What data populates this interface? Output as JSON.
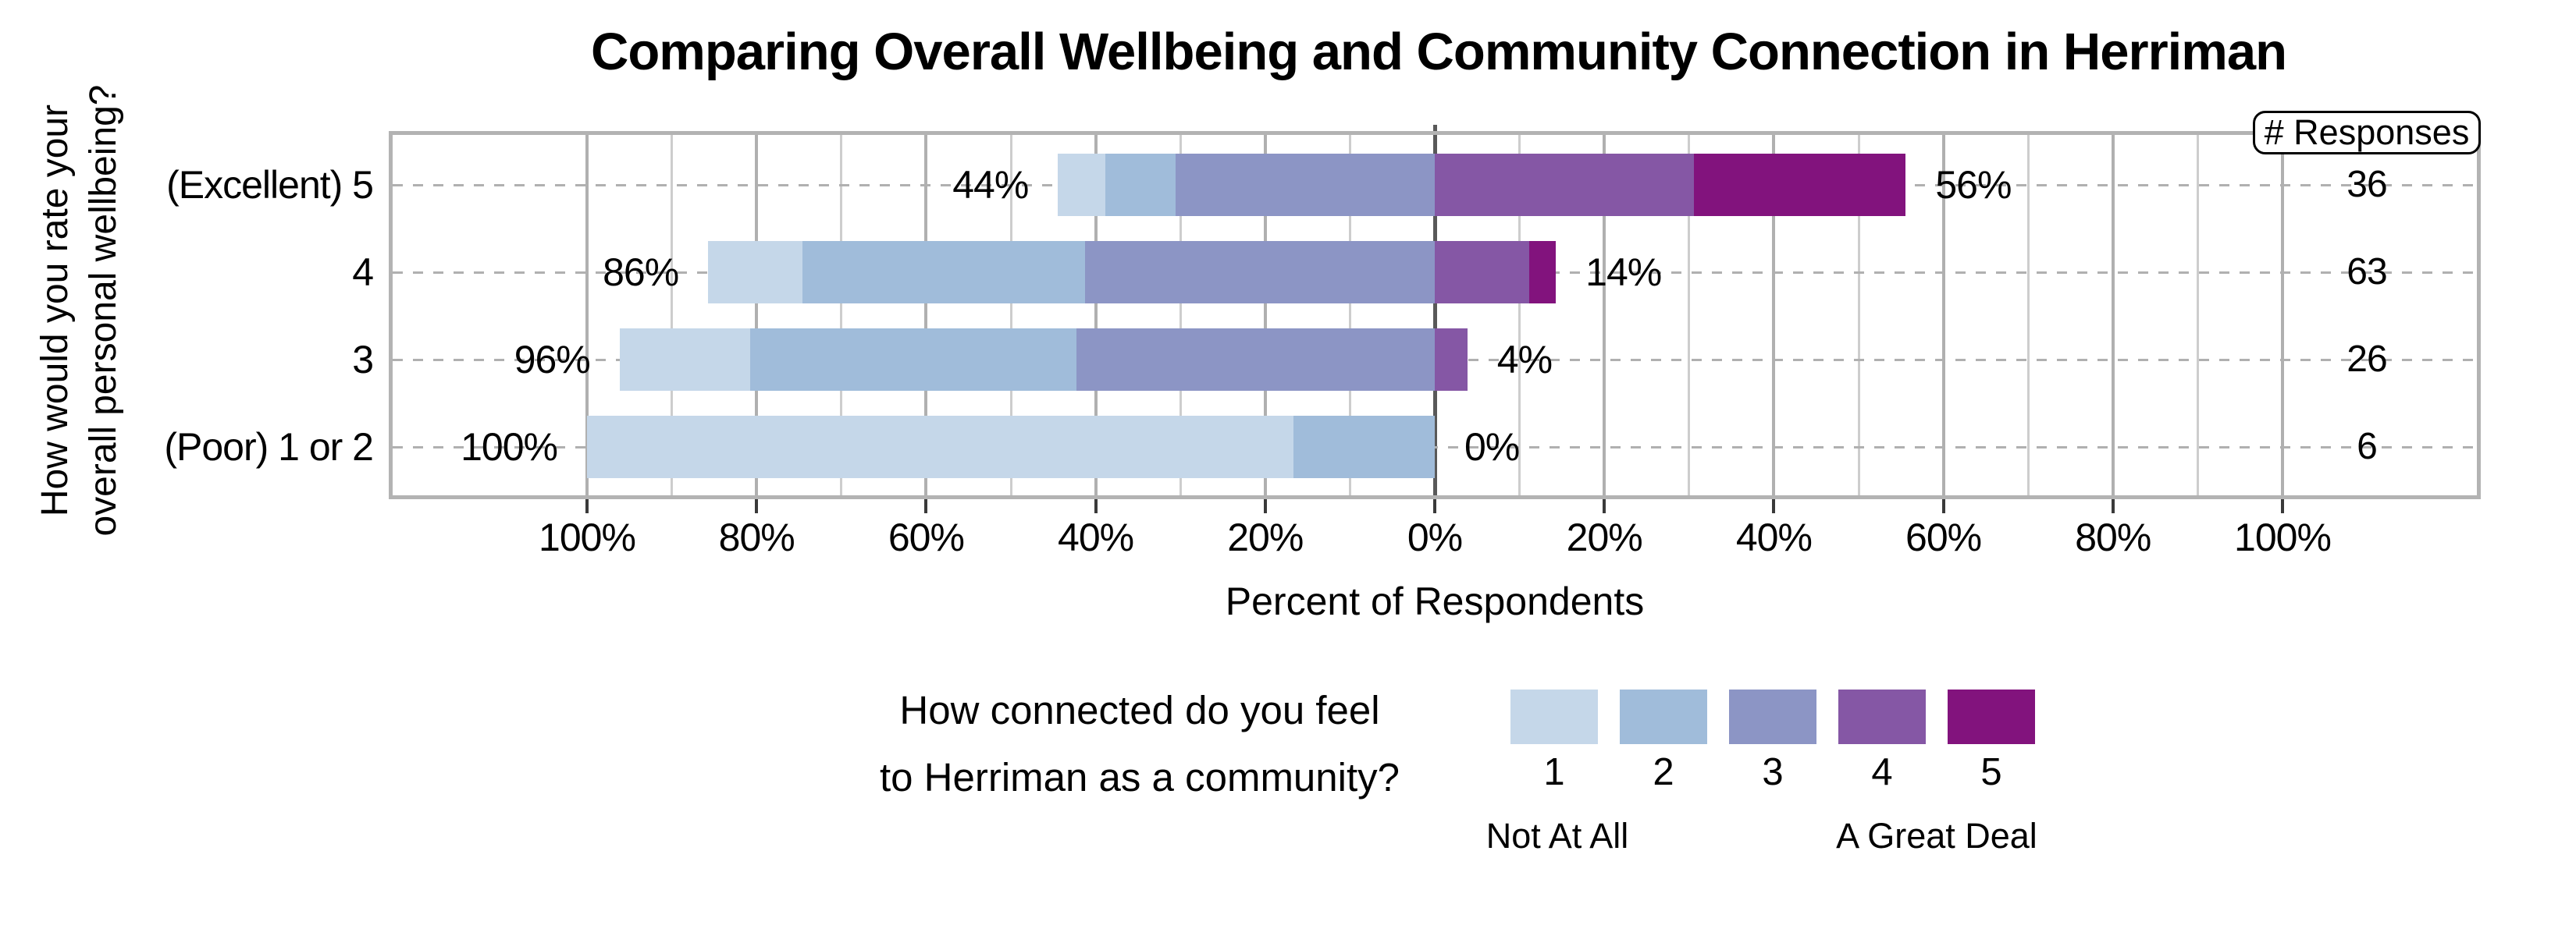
{
  "title": "Comparing Overall Wellbeing and Community Connection in Herriman",
  "y_axis": {
    "label_line1": "How would you rate your",
    "label_line2": "overall personal wellbeing?"
  },
  "x_axis": {
    "label": "Percent of Respondents",
    "ticks": [
      "100%",
      "80%",
      "60%",
      "40%",
      "20%",
      "0%",
      "20%",
      "40%",
      "60%",
      "80%",
      "100%"
    ]
  },
  "responses_header": "# Responses",
  "legend": {
    "title_line1": "How connected do you feel",
    "title_line2": "to Herriman as a community?",
    "items": [
      "1",
      "2",
      "3",
      "4",
      "5"
    ],
    "low_label": "Not At All",
    "high_label": "A Great Deal"
  },
  "colors": {
    "connection_1": "#c5d7e9",
    "connection_2": "#a0bcda",
    "connection_3": "#8c95c5",
    "connection_4": "#8557a5",
    "connection_5": "#82137d",
    "frame_gray": "#b3b3b3",
    "zero_line": "#595959"
  },
  "chart_data": {
    "type": "bar",
    "subtype": "diverging_stacked_likert",
    "title": "Comparing Overall Wellbeing and Community Connection in Herriman",
    "xlabel": "Percent of Respondents",
    "ylabel": "How would you rate your overall personal wellbeing?",
    "xlim_pct": [
      -100,
      100
    ],
    "grid": "vertical every 10%, dashed horizontal at each row",
    "legend_position": "below",
    "legend_question": "How connected do you feel to Herriman as a community?",
    "connection_levels": [
      "1",
      "2",
      "3",
      "4",
      "5"
    ],
    "left_side_levels": [
      "1",
      "2",
      "3"
    ],
    "right_side_levels": [
      "4",
      "5"
    ],
    "categories": [
      "(Excellent) 5",
      "4",
      "3",
      "(Poor) 1 or 2"
    ],
    "rows": [
      {
        "wellbeing": "(Excellent) 5",
        "responses": 36,
        "left_total_label": "44%",
        "right_total_label": "56%",
        "segments_pct": [
          5.556,
          8.333,
          30.556,
          30.556,
          25.0
        ],
        "segments_counts": [
          2,
          3,
          11,
          11,
          9
        ]
      },
      {
        "wellbeing": "4",
        "responses": 63,
        "left_total_label": "86%",
        "right_total_label": "14%",
        "segments_pct": [
          11.111,
          33.333,
          41.27,
          11.111,
          3.175
        ],
        "segments_counts": [
          7,
          21,
          26,
          7,
          2
        ]
      },
      {
        "wellbeing": "3",
        "responses": 26,
        "left_total_label": "96%",
        "right_total_label": "4%",
        "segments_pct": [
          15.385,
          38.462,
          42.308,
          3.846,
          0
        ],
        "segments_counts": [
          4,
          10,
          11,
          1,
          0
        ]
      },
      {
        "wellbeing": "(Poor) 1 or 2",
        "responses": 6,
        "left_total_label": "100%",
        "right_total_label": "0%",
        "segments_pct": [
          83.333,
          16.667,
          0,
          0,
          0
        ],
        "segments_counts": [
          5,
          1,
          0,
          0,
          0
        ]
      }
    ]
  }
}
